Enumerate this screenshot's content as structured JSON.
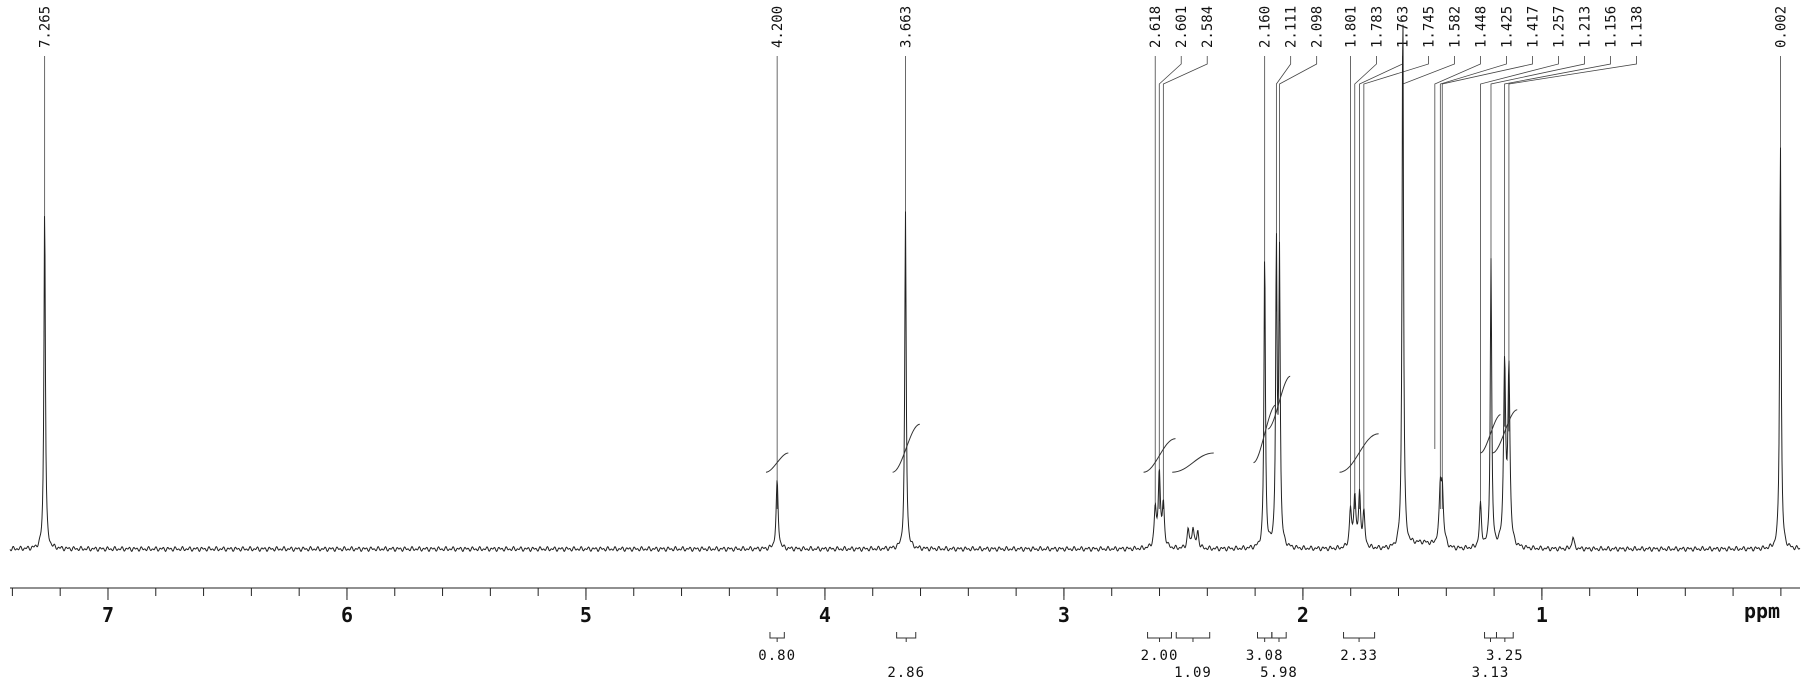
{
  "chart_data": {
    "type": "line",
    "title": "",
    "xlabel": "ppm",
    "ylabel": "",
    "xlim": [
      7.41,
      -0.08
    ],
    "x_reversed": true,
    "grid": false,
    "legend": "none",
    "x_major_ticks": [
      7,
      6,
      5,
      4,
      3,
      2,
      1
    ],
    "x_minor_tick_step": 0.2,
    "peak_labels": [
      "7.265",
      "4.200",
      "3.663",
      "2.618",
      "2.601",
      "2.584",
      "2.160",
      "2.111",
      "2.098",
      "1.801",
      "1.783",
      "1.763",
      "1.745",
      "1.582",
      "1.448",
      "1.425",
      "1.417",
      "1.257",
      "1.213",
      "1.156",
      "1.138",
      "0.002"
    ],
    "peaks": [
      {
        "x": 7.265,
        "y": 0.72
      },
      {
        "x": 4.2,
        "y": 0.14
      },
      {
        "x": 3.663,
        "y": 0.7
      },
      {
        "x": 2.618,
        "y": 0.08
      },
      {
        "x": 2.601,
        "y": 0.16
      },
      {
        "x": 2.584,
        "y": 0.09
      },
      {
        "x": 2.48,
        "y": 0.04
      },
      {
        "x": 2.46,
        "y": 0.045
      },
      {
        "x": 2.44,
        "y": 0.035
      },
      {
        "x": 2.16,
        "y": 0.62
      },
      {
        "x": 2.111,
        "y": 0.62
      },
      {
        "x": 2.098,
        "y": 0.6
      },
      {
        "x": 1.801,
        "y": 0.08
      },
      {
        "x": 1.783,
        "y": 0.11
      },
      {
        "x": 1.763,
        "y": 0.11
      },
      {
        "x": 1.745,
        "y": 0.07
      },
      {
        "x": 1.582,
        "y": 1.15
      },
      {
        "x": 1.425,
        "y": 0.1
      },
      {
        "x": 1.417,
        "y": 0.1
      },
      {
        "x": 1.257,
        "y": 0.09
      },
      {
        "x": 1.213,
        "y": 0.6
      },
      {
        "x": 1.156,
        "y": 0.38
      },
      {
        "x": 1.138,
        "y": 0.37
      },
      {
        "x": 0.87,
        "y": 0.025
      },
      {
        "x": 0.002,
        "y": 0.85
      }
    ],
    "integrals": [
      {
        "label": "0.80",
        "from": 4.23,
        "to": 4.17,
        "row": 1,
        "curve": [
          0.16,
          0.2
        ]
      },
      {
        "label": "2.86",
        "from": 3.7,
        "to": 3.62,
        "row": 2,
        "curve": [
          0.16,
          0.26
        ]
      },
      {
        "label": "2.00",
        "from": 2.65,
        "to": 2.55,
        "row": 1,
        "curve": [
          0.16,
          0.23
        ]
      },
      {
        "label": "1.09",
        "from": 2.53,
        "to": 2.39,
        "row": 2,
        "curve": [
          0.16,
          0.2
        ]
      },
      {
        "label": "3.08",
        "from": 2.19,
        "to": 2.13,
        "row": 1,
        "curve": [
          0.18,
          0.3
        ]
      },
      {
        "label": "5.98",
        "from": 2.13,
        "to": 2.07,
        "row": 2,
        "curve": [
          0.25,
          0.36
        ]
      },
      {
        "label": "2.33",
        "from": 1.83,
        "to": 1.7,
        "row": 1,
        "curve": [
          0.16,
          0.24
        ]
      },
      {
        "label": "3.13",
        "from": 1.24,
        "to": 1.19,
        "row": 2,
        "curve": [
          0.2,
          0.28
        ]
      },
      {
        "label": "3.25",
        "from": 1.19,
        "to": 1.12,
        "row": 1,
        "curve": [
          0.2,
          0.29
        ]
      }
    ]
  }
}
